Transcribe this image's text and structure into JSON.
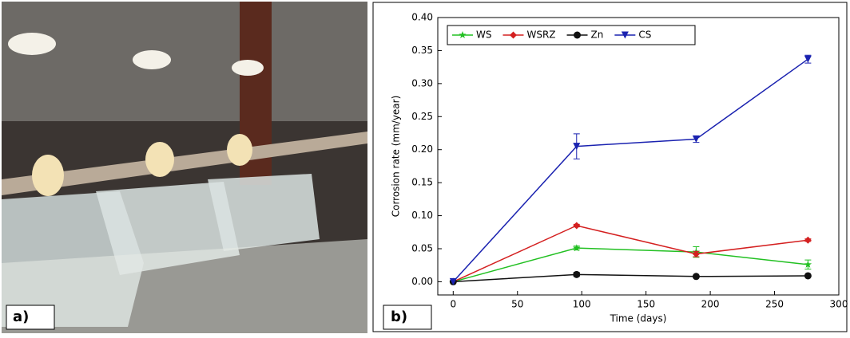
{
  "photo": {
    "label": "a)"
  },
  "chart_data": {
    "type": "line",
    "label": "b)",
    "x_label": "Time (days)",
    "y_label": "Corrosion rate (mm/year)",
    "x": [
      0,
      96,
      189,
      276
    ],
    "xlim": [
      -12,
      300
    ],
    "ylim": [
      -0.02,
      0.4
    ],
    "xticks": [
      0,
      50,
      100,
      150,
      200,
      250,
      300
    ],
    "yticks": [
      {
        "value": 0,
        "label": "0.00"
      },
      {
        "value": 0.05,
        "label": "0.05"
      },
      {
        "value": 0.1,
        "label": "0.10"
      },
      {
        "value": 0.15,
        "label": "0.15"
      },
      {
        "value": 0.2,
        "label": "0.20"
      },
      {
        "value": 0.25,
        "label": "0.25"
      },
      {
        "value": 0.3,
        "label": "0.30"
      },
      {
        "value": 0.35,
        "label": "0.35"
      },
      {
        "value": 0.4,
        "label": "0.40"
      }
    ],
    "legend": "upper left",
    "series": [
      {
        "name": "WS",
        "color": "#22c022",
        "marker": "star",
        "values": [
          0,
          0.051,
          0.045,
          0.026
        ],
        "errors": [
          0,
          0.003,
          0.008,
          0.007
        ]
      },
      {
        "name": "WSRZ",
        "color": "#d42020",
        "marker": "diamond",
        "values": [
          0,
          0.085,
          0.042,
          0.063
        ],
        "errors": [
          0,
          0.002,
          0.004,
          0.002
        ]
      },
      {
        "name": "Zn",
        "color": "#111111",
        "marker": "circle",
        "values": [
          0,
          0.011,
          0.008,
          0.009
        ],
        "errors": [
          0,
          0.003,
          0.001,
          0.001
        ]
      },
      {
        "name": "CS",
        "color": "#1a22b0",
        "marker": "tri-down",
        "values": [
          0,
          0.205,
          0.216,
          0.337
        ],
        "errors": [
          0,
          0.019,
          0.005,
          0.006
        ]
      }
    ]
  }
}
